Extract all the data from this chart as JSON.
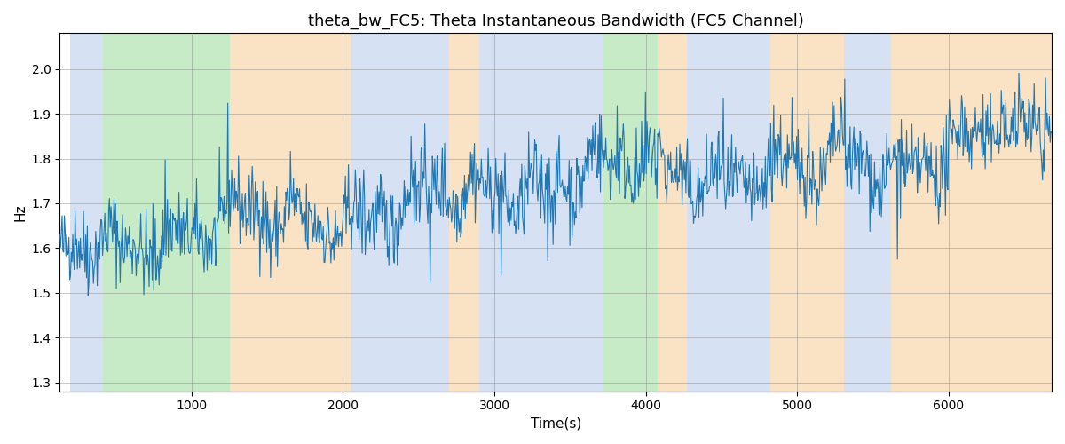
{
  "title": "theta_bw_FC5: Theta Instantaneous Bandwidth (FC5 Channel)",
  "xlabel": "Time(s)",
  "ylabel": "Hz",
  "ylim": [
    1.28,
    2.08
  ],
  "xlim": [
    130,
    6680
  ],
  "line_color": "#1f77b4",
  "line_width": 0.8,
  "bands": [
    {
      "start": 200,
      "end": 415,
      "color": "#aec6e8",
      "alpha": 0.5
    },
    {
      "start": 415,
      "end": 1250,
      "color": "#90d890",
      "alpha": 0.5
    },
    {
      "start": 1250,
      "end": 2050,
      "color": "#f5c98a",
      "alpha": 0.5
    },
    {
      "start": 2050,
      "end": 2700,
      "color": "#aec6e8",
      "alpha": 0.5
    },
    {
      "start": 2700,
      "end": 2900,
      "color": "#f5c98a",
      "alpha": 0.5
    },
    {
      "start": 2900,
      "end": 3530,
      "color": "#aec6e8",
      "alpha": 0.5
    },
    {
      "start": 3530,
      "end": 3720,
      "color": "#aec6e8",
      "alpha": 0.5
    },
    {
      "start": 3720,
      "end": 4080,
      "color": "#90d890",
      "alpha": 0.5
    },
    {
      "start": 4080,
      "end": 4270,
      "color": "#f5c98a",
      "alpha": 0.5
    },
    {
      "start": 4270,
      "end": 4820,
      "color": "#aec6e8",
      "alpha": 0.5
    },
    {
      "start": 4820,
      "end": 5310,
      "color": "#f5c98a",
      "alpha": 0.5
    },
    {
      "start": 5310,
      "end": 5620,
      "color": "#aec6e8",
      "alpha": 0.5
    },
    {
      "start": 5620,
      "end": 6680,
      "color": "#f5c98a",
      "alpha": 0.5
    }
  ],
  "seed": 42,
  "n_points": 1300,
  "t_start": 130,
  "t_end": 6680
}
